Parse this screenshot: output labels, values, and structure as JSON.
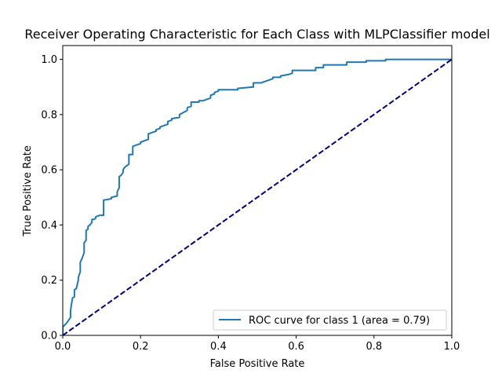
{
  "colors": {
    "roc_line": "#1f77b4",
    "chance_line": "#000080",
    "axes": "#000000",
    "background": "#ffffff"
  },
  "chart_data": {
    "type": "line",
    "title": "Receiver Operating Characteristic for Each Class with MLPClassifier model",
    "xlabel": "False Positive Rate",
    "ylabel": "True Positive Rate",
    "xlim": [
      0.0,
      1.0
    ],
    "ylim": [
      0.0,
      1.05
    ],
    "xticks": [
      "0.0",
      "0.2",
      "0.4",
      "0.6",
      "0.8",
      "1.0"
    ],
    "yticks": [
      "0.0",
      "0.2",
      "0.4",
      "0.6",
      "0.8",
      "1.0"
    ],
    "grid": false,
    "legend_position": "lower right",
    "legend": [
      "ROC curve for class 1 (area = 0.79)"
    ],
    "series": [
      {
        "name": "ROC curve for class 1 (area = 0.79)",
        "style": "solid",
        "x": [
          0,
          0,
          0.01,
          0.015,
          0.02,
          0.02,
          0.025,
          0.03,
          0.03,
          0.035,
          0.04,
          0.04,
          0.045,
          0.045,
          0.05,
          0.055,
          0.055,
          0.06,
          0.06,
          0.065,
          0.065,
          0.07,
          0.075,
          0.075,
          0.08,
          0.085,
          0.085,
          0.095,
          0.105,
          0.105,
          0.125,
          0.125,
          0.14,
          0.14,
          0.145,
          0.145,
          0.15,
          0.15,
          0.155,
          0.155,
          0.16,
          0.17,
          0.17,
          0.18,
          0.18,
          0.19,
          0.19,
          0.2,
          0.2,
          0.21,
          0.22,
          0.22,
          0.24,
          0.24,
          0.25,
          0.25,
          0.26,
          0.27,
          0.27,
          0.28,
          0.28,
          0.3,
          0.3,
          0.32,
          0.32,
          0.33,
          0.33,
          0.35,
          0.35,
          0.36,
          0.37,
          0.38,
          0.38,
          0.39,
          0.39,
          0.4,
          0.4,
          0.45,
          0.45,
          0.49,
          0.49,
          0.51,
          0.52,
          0.53,
          0.54,
          0.54,
          0.56,
          0.56,
          0.58,
          0.59,
          0.59,
          0.65,
          0.65,
          0.67,
          0.67,
          0.73,
          0.73,
          0.78,
          0.78,
          0.83,
          0.83,
          0.89,
          0.89,
          0.985,
          0.985,
          1.0
        ],
        "y": [
          0,
          0.03,
          0.045,
          0.055,
          0.065,
          0.09,
          0.135,
          0.14,
          0.165,
          0.17,
          0.2,
          0.21,
          0.23,
          0.265,
          0.28,
          0.3,
          0.335,
          0.345,
          0.38,
          0.385,
          0.395,
          0.4,
          0.41,
          0.42,
          0.42,
          0.425,
          0.43,
          0.435,
          0.435,
          0.49,
          0.495,
          0.5,
          0.505,
          0.52,
          0.535,
          0.575,
          0.58,
          0.58,
          0.59,
          0.6,
          0.61,
          0.62,
          0.655,
          0.655,
          0.685,
          0.69,
          0.69,
          0.695,
          0.7,
          0.705,
          0.71,
          0.73,
          0.74,
          0.745,
          0.75,
          0.755,
          0.76,
          0.765,
          0.775,
          0.78,
          0.785,
          0.79,
          0.8,
          0.815,
          0.825,
          0.83,
          0.845,
          0.845,
          0.85,
          0.85,
          0.855,
          0.86,
          0.87,
          0.875,
          0.88,
          0.885,
          0.89,
          0.89,
          0.895,
          0.9,
          0.915,
          0.915,
          0.92,
          0.925,
          0.93,
          0.935,
          0.935,
          0.94,
          0.945,
          0.95,
          0.96,
          0.96,
          0.97,
          0.97,
          0.98,
          0.98,
          0.99,
          0.99,
          0.995,
          0.995,
          1.0,
          1.0,
          1.0,
          1.0,
          1.0,
          1.0
        ]
      },
      {
        "style": "dashed",
        "x": [
          0.0,
          1.0
        ],
        "y": [
          0.0,
          1.0
        ]
      }
    ]
  }
}
